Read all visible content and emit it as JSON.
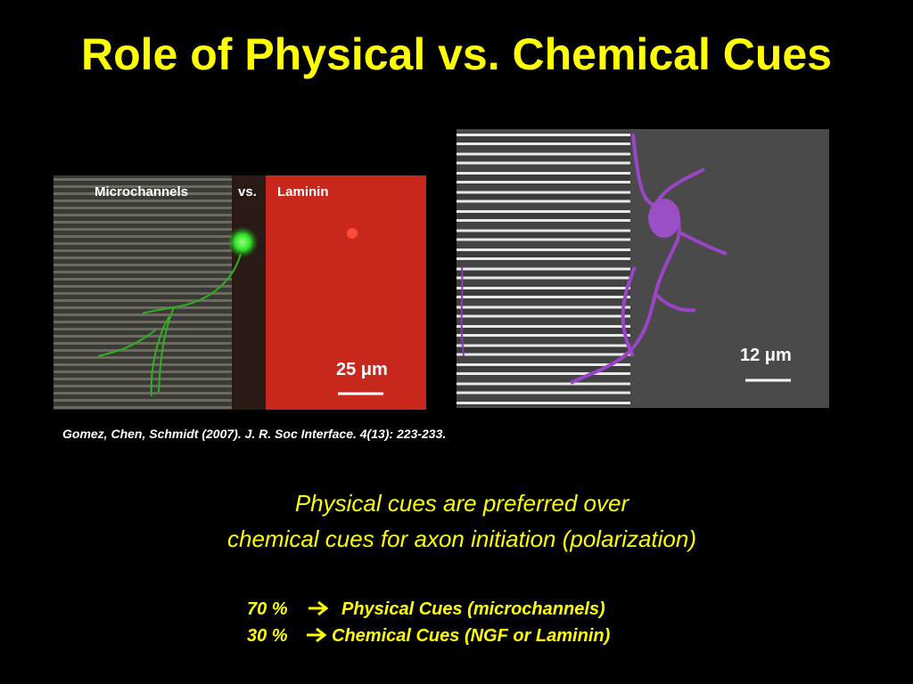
{
  "slide": {
    "title": "Role of Physical vs. Chemical Cues",
    "left_image": {
      "labels": [
        "Microchannels",
        "vs.",
        "Laminin"
      ],
      "scale_bar": "25 μm"
    },
    "right_image": {
      "scale_bar": "12 μm"
    },
    "citation": "Gomez, Chen, Schmidt (2007). J. R. Soc Interface. 4(13): 223-233.",
    "summary": [
      "Physical cues are preferred over",
      "chemical cues for axon initiation (polarization)"
    ],
    "results": [
      {
        "percent": "70 %",
        "text": "Physical Cues (microchannels)"
      },
      {
        "percent": "30 %",
        "text": "Chemical Cues (NGF or Laminin)"
      }
    ]
  }
}
